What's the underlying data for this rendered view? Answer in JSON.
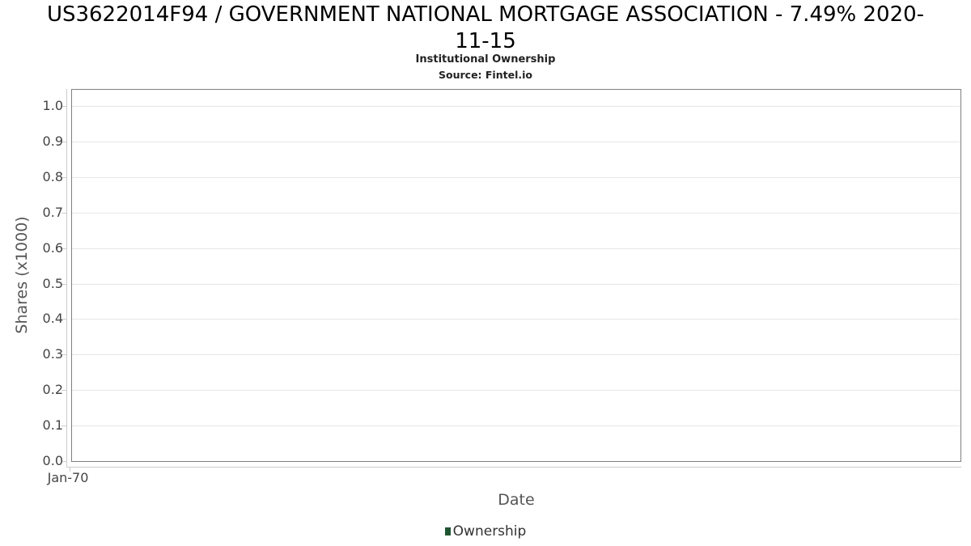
{
  "chart_data": {
    "type": "line",
    "title": "US3622014F94 / GOVERNMENT NATIONAL MORTGAGE ASSOCIATION - 7.49% 2020-11-15",
    "title_lines": [
      "US3622014F94 / GOVERNMENT NATIONAL MORTGAGE ASSOCIATION - 7.49% 2020-",
      "11-15"
    ],
    "subtitle": "Institutional Ownership",
    "source": "Source: Fintel.io",
    "xlabel": "Date",
    "ylabel": "Shares (x1000)",
    "x_ticks": [
      "Jan-70"
    ],
    "y_ticks": [
      "0.0",
      "0.1",
      "0.2",
      "0.3",
      "0.4",
      "0.5",
      "0.6",
      "0.7",
      "0.8",
      "0.9",
      "1.0"
    ],
    "ylim": [
      0.0,
      1.05
    ],
    "grid": true,
    "legend_position": "bottom",
    "series": [
      {
        "name": "Ownership",
        "color": "#1e5430",
        "x": [],
        "values": []
      }
    ]
  },
  "colors": {
    "grid": "#e6e6e6",
    "plot_border": "#808080",
    "axis_line": "#cccccc",
    "tick_label": "#444444",
    "axis_title": "#555555",
    "legend_text": "#333333",
    "series_ownership": "#1e5430"
  }
}
